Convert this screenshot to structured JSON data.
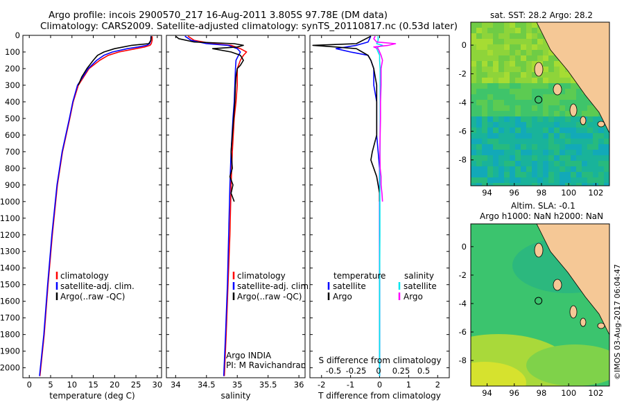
{
  "header": {
    "line1": "Argo profile: incois 2900570_217 16-Aug-2011 3.805S 97.78E (DM data)",
    "line2": "Climatology: CARS2009. Satellite-adjusted climatology: synTS_20110817.nc (0.53d later)"
  },
  "colors": {
    "climatology": "#ff0000",
    "satellite": "#0000ff",
    "argo": "#000000",
    "sal_satellite": "#00e5ee",
    "sal_argo": "#ff00ff"
  },
  "chart_data": [
    {
      "id": "temperature",
      "type": "line",
      "xlabel": "temperature (deg C)",
      "ylabel": "",
      "xlim": [
        -1.5,
        31
      ],
      "ylim": [
        2060,
        0
      ],
      "xticks": [
        0,
        5,
        10,
        15,
        20,
        25,
        30
      ],
      "yticks": [
        0,
        100,
        200,
        300,
        400,
        500,
        600,
        700,
        800,
        900,
        1000,
        1100,
        1200,
        1300,
        1400,
        1500,
        1600,
        1700,
        1800,
        1900,
        2000
      ],
      "legend": [
        "climatology",
        "satellite-adj. clim.",
        "Argo(..raw -QC)"
      ],
      "series": [
        {
          "name": "climatology",
          "color": "#ff0000",
          "depth": [
            5,
            30,
            50,
            60,
            70,
            80,
            100,
            120,
            150,
            200,
            300,
            400,
            500,
            700,
            900,
            1200,
            1500,
            1800,
            2050
          ],
          "values": [
            28.8,
            28.8,
            28.6,
            28.3,
            27,
            25,
            21,
            18.5,
            16.5,
            14,
            11.5,
            10.3,
            9.5,
            7.8,
            6.6,
            5.4,
            4.4,
            3.5,
            2.5
          ]
        },
        {
          "name": "satellite-adj. clim.",
          "color": "#0000ff",
          "depth": [
            5,
            30,
            50,
            60,
            70,
            80,
            100,
            120,
            150,
            200,
            300,
            400,
            500,
            700,
            900,
            1200,
            1500,
            1800,
            2050
          ],
          "values": [
            28.5,
            28.5,
            28.2,
            27.5,
            25.5,
            23,
            19.5,
            17.5,
            15.8,
            13.8,
            11.3,
            10.2,
            9.4,
            7.7,
            6.5,
            5.3,
            4.3,
            3.4,
            2.4
          ]
        },
        {
          "name": "Argo(..raw -QC)",
          "color": "#000000",
          "depth": [
            5,
            30,
            50,
            55,
            60,
            70,
            80,
            100,
            120,
            150,
            200,
            250,
            300
          ],
          "values": [
            28.6,
            28.5,
            28,
            26,
            24,
            22,
            20,
            17.5,
            16,
            15,
            13.5,
            12.3,
            11.5
          ]
        }
      ]
    },
    {
      "id": "salinity",
      "type": "line",
      "xlabel": "salinity",
      "ylabel": "",
      "xlim": [
        33.85,
        36.1
      ],
      "ylim": [
        2060,
        0
      ],
      "xticks": [
        34,
        34.5,
        35,
        35.5,
        36
      ],
      "legend": [
        "climatology",
        "satellite-adj. clim.",
        "Argo(..raw -QC)"
      ],
      "annotations": [
        "Argo INDIA",
        "PI: M Ravichandran"
      ],
      "series": [
        {
          "name": "climatology",
          "color": "#ff0000",
          "depth": [
            5,
            30,
            50,
            60,
            80,
            100,
            120,
            150,
            200,
            300,
            400,
            500,
            700,
            900,
            1200,
            1500,
            1800,
            2050
          ],
          "values": [
            34.2,
            34.3,
            34.6,
            34.9,
            35.05,
            35.15,
            35.1,
            35.05,
            35.0,
            35.0,
            34.98,
            34.95,
            34.92,
            34.9,
            34.88,
            34.85,
            34.82,
            34.79
          ]
        },
        {
          "name": "satellite-adj. clim.",
          "color": "#0000ff",
          "depth": [
            5,
            30,
            50,
            60,
            80,
            100,
            120,
            150,
            200,
            300,
            400,
            500,
            700,
            900,
            1200,
            1500,
            1800,
            2050
          ],
          "values": [
            34.15,
            34.25,
            34.5,
            34.85,
            35.0,
            35.05,
            35.02,
            34.98,
            34.97,
            34.96,
            34.95,
            34.93,
            34.9,
            34.88,
            34.86,
            34.84,
            34.81,
            34.78
          ]
        },
        {
          "name": "Argo(..raw -QC)",
          "color": "#000000",
          "depth": [
            5,
            20,
            40,
            50,
            60,
            70,
            80,
            100,
            120,
            150,
            180,
            200,
            250,
            300,
            400,
            500,
            600,
            700,
            800,
            850,
            900,
            950,
            1000
          ],
          "values": [
            34.0,
            34.05,
            34.3,
            34.95,
            35.1,
            35.0,
            34.6,
            34.9,
            35.05,
            35.1,
            35.05,
            35.0,
            34.98,
            34.97,
            34.96,
            34.94,
            34.92,
            34.9,
            34.92,
            34.88,
            34.93,
            34.9,
            34.95
          ]
        }
      ]
    },
    {
      "id": "difference",
      "type": "line",
      "xlabel": "T difference from climatology",
      "xlabel2": "S difference from climatology",
      "xlim": [
        -2.4,
        2.4
      ],
      "ylim": [
        2060,
        0
      ],
      "xticks": [
        -2,
        -1,
        0,
        1,
        2
      ],
      "xticks_top": [
        -0.5,
        -0.25,
        0,
        0.25,
        0.5
      ],
      "xticks_top_labels": [
        "-0.5",
        "-0.25",
        "0",
        "0.25",
        "0.5"
      ],
      "legend_titles": [
        "temperature",
        "salinity"
      ],
      "legend": [
        "satellite",
        "Argo",
        "satellite",
        "Argo"
      ],
      "series": [
        {
          "name": "T satellite",
          "color": "#0000ff",
          "depth": [
            5,
            40,
            60,
            80,
            100,
            120,
            150,
            200,
            300,
            400,
            500,
            600,
            700,
            800,
            1000,
            1200,
            1500,
            1800,
            2050
          ],
          "values": [
            -0.3,
            -0.4,
            -0.8,
            -1.5,
            -1.0,
            -0.4,
            -0.3,
            -0.2,
            -0.2,
            -0.1,
            -0.1,
            -0.1,
            -0.05,
            0,
            0,
            0,
            0,
            0,
            0
          ]
        },
        {
          "name": "T Argo",
          "color": "#000000",
          "depth": [
            5,
            50,
            60,
            70,
            80,
            100,
            120,
            150,
            200,
            300,
            400,
            500,
            600,
            700,
            750,
            800,
            850,
            900,
            950,
            1000
          ],
          "values": [
            -0.3,
            -0.8,
            -2.3,
            -1.5,
            -0.8,
            -0.6,
            -0.4,
            -0.3,
            -0.2,
            -0.1,
            -0.1,
            -0.1,
            -0.1,
            -0.25,
            -0.3,
            -0.2,
            -0.1,
            -0.05,
            0,
            0
          ]
        },
        {
          "name": "S satellite",
          "color": "#00e5ee",
          "depth": [
            5,
            30,
            50,
            60,
            70,
            80,
            100,
            120,
            150,
            200,
            300,
            500,
            800,
            1200,
            1500,
            1800,
            2050
          ],
          "values": [
            -0.05,
            -0.05,
            -0.1,
            0.1,
            -0.05,
            -0.1,
            -0.05,
            0.0,
            0.0,
            0.02,
            0.02,
            0.02,
            0.01,
            0.01,
            0.0,
            0.0,
            0.0
          ]
        },
        {
          "name": "S Argo",
          "color": "#ff00ff",
          "depth": [
            5,
            20,
            40,
            50,
            60,
            70,
            80,
            100,
            120,
            150,
            200,
            300,
            400,
            500,
            600,
            700,
            800,
            850,
            900,
            950,
            1000
          ],
          "values": [
            -0.15,
            -0.2,
            -0.1,
            0.55,
            0.3,
            -0.2,
            -0.05,
            0.0,
            0.05,
            0.1,
            0.05,
            0.05,
            0.03,
            0.03,
            0.02,
            0.01,
            0.02,
            0.05,
            0.05,
            0.08,
            0.1
          ]
        }
      ]
    }
  ],
  "maps": {
    "top": {
      "title": "sat. SST: 28.2  Argo: 28.2",
      "xticks": [
        "94",
        "96",
        "98",
        "100",
        "102"
      ],
      "yticks": [
        "0",
        "-2",
        "-4",
        "-6",
        "-8"
      ]
    },
    "bottom": {
      "title1": "Altim. SLA: -0.1",
      "title2": "Argo h1000: NaN h2000: NaN",
      "xticks": [
        "94",
        "96",
        "98",
        "100",
        "102"
      ],
      "yticks": [
        "0",
        "-2",
        "-4",
        "-6",
        "-8"
      ]
    }
  },
  "footer": {
    "credit": "©IMOS 03-Aug-2017 06:04:47"
  }
}
